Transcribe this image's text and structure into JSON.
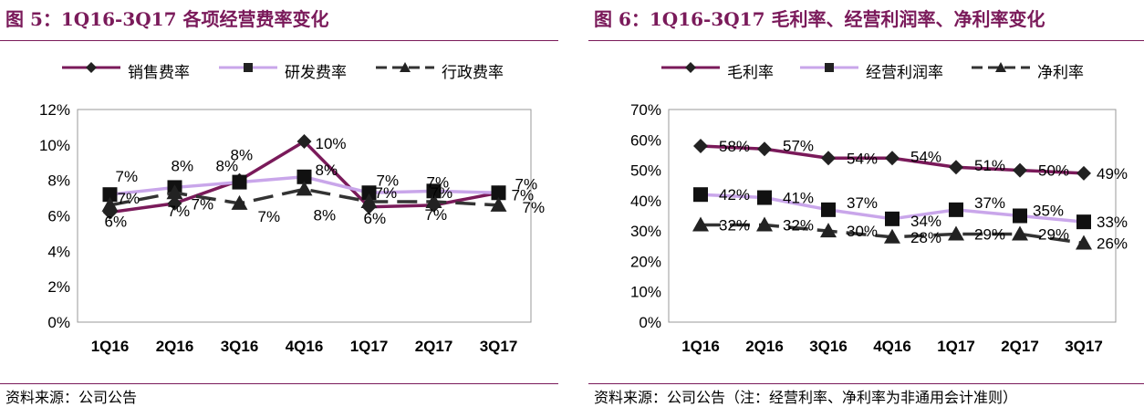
{
  "left": {
    "title": "图 5：1Q16-3Q17 各项经营费率变化",
    "source": "资料来源：公司公告",
    "legend": [
      {
        "label": "销售费率",
        "color": "#7a1a5a",
        "dash": false,
        "marker": "diamond"
      },
      {
        "label": "研发费率",
        "color": "#c9a6ea",
        "dash": false,
        "marker": "square"
      },
      {
        "label": "行政费率",
        "color": "#333333",
        "dash": true,
        "marker": "triangle"
      }
    ],
    "chart_data": {
      "type": "line",
      "categories": [
        "1Q16",
        "2Q16",
        "3Q16",
        "4Q16",
        "1Q17",
        "2Q17",
        "3Q17"
      ],
      "ylim": [
        0,
        12
      ],
      "yticks": [
        "0%",
        "2%",
        "4%",
        "6%",
        "8%",
        "10%",
        "12%"
      ],
      "series": [
        {
          "name": "销售费率",
          "values": [
            6.2,
            6.7,
            8.0,
            10.2,
            6.5,
            6.6,
            7.3
          ],
          "labels": [
            "6%",
            "7%",
            "8%",
            "10%",
            "6%",
            "7%",
            "7%"
          ],
          "color": "#7a1a5a",
          "marker": "diamond"
        },
        {
          "name": "研发费率",
          "values": [
            7.2,
            7.6,
            7.9,
            8.2,
            7.3,
            7.4,
            7.3
          ],
          "labels": [
            "7%",
            "8%",
            "8%",
            "8%",
            "7%",
            "7%",
            "7%"
          ],
          "color": "#c9a6ea",
          "marker": "square"
        },
        {
          "name": "行政费率",
          "values": [
            6.6,
            7.3,
            6.7,
            7.5,
            6.8,
            6.8,
            6.6
          ],
          "labels": [
            "7%",
            "7%",
            "7%",
            "8%",
            "7%",
            "7%",
            "7%"
          ],
          "color": "#333333",
          "marker": "triangle",
          "dash": true
        }
      ]
    }
  },
  "right": {
    "title": "图 6：1Q16-3Q17 毛利率、经营利润率、净利率变化",
    "source": "资料来源：公司公告（注：经营利率、净利率为非通用会计准则）",
    "legend": [
      {
        "label": "毛利率",
        "color": "#7a1a5a",
        "dash": false,
        "marker": "diamond"
      },
      {
        "label": "经营利润率",
        "color": "#c9a6ea",
        "dash": false,
        "marker": "square"
      },
      {
        "label": "净利率",
        "color": "#333333",
        "dash": true,
        "marker": "triangle"
      }
    ],
    "chart_data": {
      "type": "line",
      "categories": [
        "1Q16",
        "2Q16",
        "3Q16",
        "4Q16",
        "1Q17",
        "2Q17",
        "3Q17"
      ],
      "ylim": [
        0,
        70
      ],
      "yticks": [
        "0%",
        "10%",
        "20%",
        "30%",
        "40%",
        "50%",
        "60%",
        "70%"
      ],
      "series": [
        {
          "name": "毛利率",
          "values": [
            58,
            57,
            54,
            54,
            51,
            50,
            49
          ],
          "labels": [
            "58%",
            "57%",
            "54%",
            "54%",
            "51%",
            "50%",
            "49%"
          ],
          "color": "#7a1a5a",
          "marker": "diamond"
        },
        {
          "name": "经营利润率",
          "values": [
            42,
            41,
            37,
            34,
            37,
            35,
            33
          ],
          "labels": [
            "42%",
            "41%",
            "37%",
            "34%",
            "37%",
            "35%",
            "33%"
          ],
          "color": "#c9a6ea",
          "marker": "square"
        },
        {
          "name": "净利率",
          "values": [
            32,
            32,
            30,
            28,
            29,
            29,
            26
          ],
          "labels": [
            "32%",
            "32%",
            "30%",
            "28%",
            "29%",
            "29%",
            "26%"
          ],
          "color": "#333333",
          "marker": "triangle",
          "dash": true
        }
      ]
    }
  }
}
